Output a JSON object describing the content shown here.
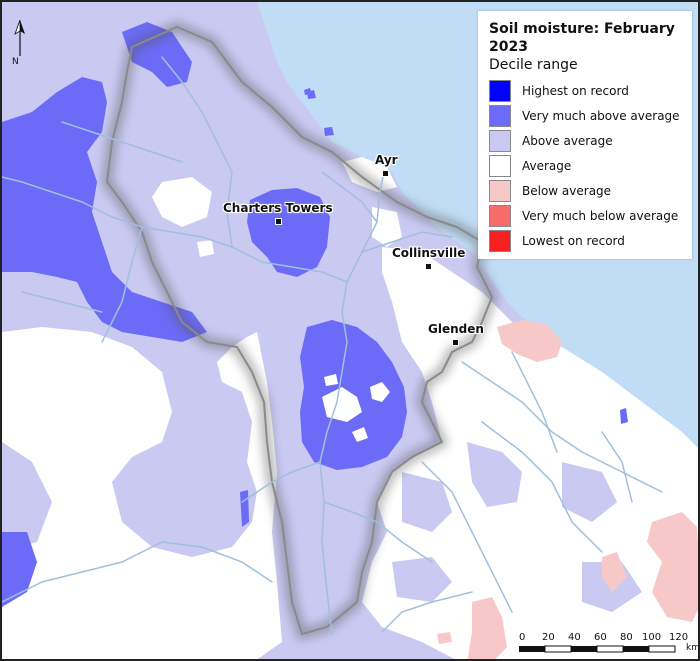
{
  "legend": {
    "title": "Soil moisture: February 2023",
    "subtitle": "Decile range",
    "items": [
      {
        "label": "Highest on record",
        "color": "#0000ff"
      },
      {
        "label": "Very much above average",
        "color": "#6b6bf8"
      },
      {
        "label": "Above average",
        "color": "#c9c9f2"
      },
      {
        "label": "Average",
        "color": "#ffffff"
      },
      {
        "label": "Below average",
        "color": "#f7c8c8"
      },
      {
        "label": "Very much below average",
        "color": "#f76b6b"
      },
      {
        "label": "Lowest on record",
        "color": "#f72020"
      }
    ]
  },
  "towns": [
    {
      "name": "Ayr"
    },
    {
      "name": "Charters Towers"
    },
    {
      "name": "Collinsville"
    },
    {
      "name": "Glenden"
    }
  ],
  "north_arrow": {
    "label": "N"
  },
  "scale_bar": {
    "ticks": [
      "0",
      "20",
      "40",
      "60",
      "80",
      "100",
      "120"
    ],
    "unit": "km"
  },
  "colors": {
    "sea": "#c0ddf5",
    "river": "#9fc0dc",
    "catchment_outline": "#8a8a8a"
  }
}
